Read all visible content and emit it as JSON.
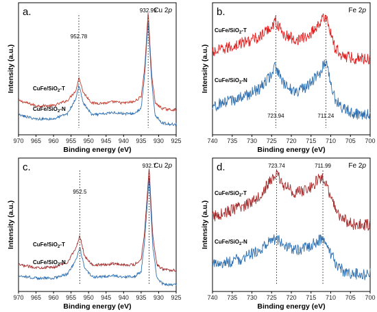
{
  "chart_data": [
    {
      "type": "line",
      "panel_label": "a.",
      "element_label": "Cu 2p",
      "xlabel": "Binding energy (eV)",
      "ylabel": "Intensity (a.u.)",
      "xlim": [
        970,
        925
      ],
      "xticks": [
        "970",
        "965",
        "960",
        "955",
        "950",
        "945",
        "940",
        "935",
        "930",
        "925"
      ],
      "peaks": [
        {
          "label": "952.78",
          "x": 952.78
        },
        {
          "label": "932.99",
          "x": 932.99
        }
      ],
      "series": [
        {
          "name": "CuFe/SiO₂-T",
          "color": "#c0392b",
          "x": [
            970,
            965,
            960,
            956,
            953.5,
            952.8,
            951.5,
            949,
            945,
            943,
            940,
            937,
            935,
            934,
            933,
            932,
            931,
            929,
            927,
            925
          ],
          "y": [
            0.26,
            0.22,
            0.22,
            0.26,
            0.34,
            0.44,
            0.32,
            0.24,
            0.24,
            0.25,
            0.24,
            0.25,
            0.29,
            0.5,
            0.93,
            0.46,
            0.24,
            0.2,
            0.19,
            0.19
          ]
        },
        {
          "name": "CuFe/SiO₂-N",
          "color": "#2e6fb0",
          "x": [
            970,
            965,
            960,
            956,
            953.5,
            952.8,
            951.5,
            949,
            945,
            943,
            940,
            937,
            935,
            934,
            933,
            932,
            931,
            929,
            927,
            925
          ],
          "y": [
            0.15,
            0.12,
            0.12,
            0.16,
            0.28,
            0.38,
            0.24,
            0.15,
            0.16,
            0.17,
            0.16,
            0.16,
            0.2,
            0.45,
            0.86,
            0.4,
            0.15,
            0.09,
            0.08,
            0.08
          ]
        }
      ]
    },
    {
      "type": "line",
      "panel_label": "b.",
      "element_label": "Fe 2p",
      "xlabel": "Binding energy (eV)",
      "ylabel": "Intensity (a.u.)",
      "xlim": [
        740,
        700
      ],
      "xticks": [
        "740",
        "735",
        "730",
        "725",
        "720",
        "715",
        "710",
        "705",
        "700"
      ],
      "peaks": [
        {
          "label": "723.94",
          "x": 723.94
        },
        {
          "label": "711.24",
          "x": 711.24
        }
      ],
      "series": [
        {
          "name": "CuFe/SiO₂-T",
          "color": "#e02020",
          "x": [
            740,
            736,
            732,
            728,
            725,
            724,
            722,
            719,
            716,
            713,
            711.2,
            709,
            707,
            704,
            700
          ],
          "y": [
            0.62,
            0.66,
            0.7,
            0.74,
            0.82,
            0.86,
            0.76,
            0.72,
            0.74,
            0.84,
            0.9,
            0.66,
            0.6,
            0.58,
            0.58
          ]
        },
        {
          "name": "CuFe/SiO₂-N",
          "color": "#2e6fb0",
          "x": [
            740,
            736,
            732,
            728,
            725,
            724,
            722,
            719,
            716,
            713,
            711.2,
            709,
            707,
            704,
            700
          ],
          "y": [
            0.22,
            0.25,
            0.29,
            0.35,
            0.46,
            0.52,
            0.38,
            0.33,
            0.36,
            0.46,
            0.56,
            0.28,
            0.2,
            0.16,
            0.16
          ]
        }
      ]
    },
    {
      "type": "line",
      "panel_label": "c.",
      "element_label": "Cu 2p",
      "xlabel": "Binding energy (eV)",
      "ylabel": "Intensity (a.u.)",
      "xlim": [
        970,
        925
      ],
      "xticks": [
        "970",
        "965",
        "960",
        "955",
        "950",
        "945",
        "940",
        "935",
        "930",
        "925"
      ],
      "peaks": [
        {
          "label": "952.5",
          "x": 952.5
        },
        {
          "label": "932.7",
          "x": 932.7
        }
      ],
      "series": [
        {
          "name": "CuFe/SiO₂-T",
          "color": "#a52a2a",
          "x": [
            970,
            965,
            960,
            956,
            953.5,
            952.5,
            951.2,
            949,
            945,
            943,
            940,
            937,
            935,
            934,
            932.7,
            931.7,
            930.5,
            929,
            927,
            925
          ],
          "y": [
            0.2,
            0.18,
            0.18,
            0.22,
            0.33,
            0.42,
            0.27,
            0.2,
            0.2,
            0.21,
            0.2,
            0.2,
            0.24,
            0.45,
            0.93,
            0.42,
            0.2,
            0.17,
            0.16,
            0.16
          ]
        },
        {
          "name": "CuFe/SiO₂-N",
          "color": "#2e6fb0",
          "x": [
            970,
            965,
            960,
            956,
            953.5,
            952.5,
            951.2,
            949,
            945,
            943,
            940,
            937,
            935,
            934,
            932.7,
            931.7,
            930.5,
            929,
            927,
            925
          ],
          "y": [
            0.12,
            0.1,
            0.1,
            0.13,
            0.24,
            0.33,
            0.18,
            0.11,
            0.11,
            0.12,
            0.11,
            0.11,
            0.15,
            0.38,
            0.86,
            0.34,
            0.1,
            0.06,
            0.05,
            0.05
          ]
        }
      ]
    },
    {
      "type": "line",
      "panel_label": "d.",
      "element_label": "Fe 2p",
      "xlabel": "Binding energy (eV)",
      "ylabel": "Intensity (a.u.)",
      "xlim": [
        740,
        700
      ],
      "xticks": [
        "740",
        "735",
        "730",
        "725",
        "720",
        "715",
        "710",
        "705",
        "700"
      ],
      "peaks": [
        {
          "label": "723.74",
          "x": 723.74
        },
        {
          "label": "711.99",
          "x": 711.99
        }
      ],
      "series": [
        {
          "name": "CuFe/SiO₂-T",
          "color": "#a52a2a",
          "x": [
            740,
            736,
            732,
            728,
            725,
            723.7,
            722,
            719,
            716,
            713,
            712,
            710,
            708,
            706,
            704,
            700
          ],
          "y": [
            0.56,
            0.6,
            0.64,
            0.72,
            0.84,
            0.88,
            0.8,
            0.74,
            0.76,
            0.84,
            0.86,
            0.7,
            0.58,
            0.52,
            0.5,
            0.5
          ]
        },
        {
          "name": "CuFe/SiO₂-N",
          "color": "#2e6fb0",
          "x": [
            740,
            736,
            732,
            728,
            725,
            723.7,
            722,
            719,
            716,
            713,
            712,
            710,
            708,
            706,
            704,
            700
          ],
          "y": [
            0.2,
            0.22,
            0.25,
            0.31,
            0.38,
            0.4,
            0.35,
            0.31,
            0.33,
            0.38,
            0.4,
            0.28,
            0.18,
            0.14,
            0.13,
            0.13
          ]
        }
      ]
    }
  ]
}
